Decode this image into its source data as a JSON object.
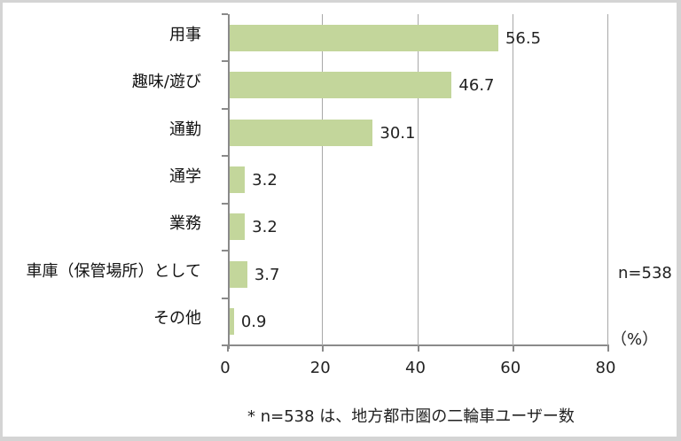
{
  "chart_data": {
    "type": "bar",
    "orientation": "horizontal",
    "categories": [
      "用事",
      "趣味/遊び",
      "通勤",
      "通学",
      "業務",
      "車庫（保管場所）として",
      "その他"
    ],
    "values": [
      56.5,
      46.7,
      30.1,
      3.2,
      3.2,
      3.7,
      0.9
    ],
    "value_labels": [
      "56.5",
      "46.7",
      "30.1",
      "3.2",
      "3.2",
      "3.7",
      "0.9"
    ],
    "title": "",
    "xlabel": "（%）",
    "ylabel": "",
    "xlim": [
      0,
      80
    ],
    "xticks": [
      "0",
      "20",
      "40",
      "60",
      "80"
    ],
    "grid": "vertical",
    "bar_color": "#c3d69b",
    "annotations": [
      "n=538",
      "* n=538 は、地方都市圏の二輪車ユーザー数"
    ]
  },
  "labels": {
    "unit": "（%）",
    "sample": "n=538",
    "footnote": "* n=538 は、地方都市圏の二輪車ユーザー数"
  }
}
